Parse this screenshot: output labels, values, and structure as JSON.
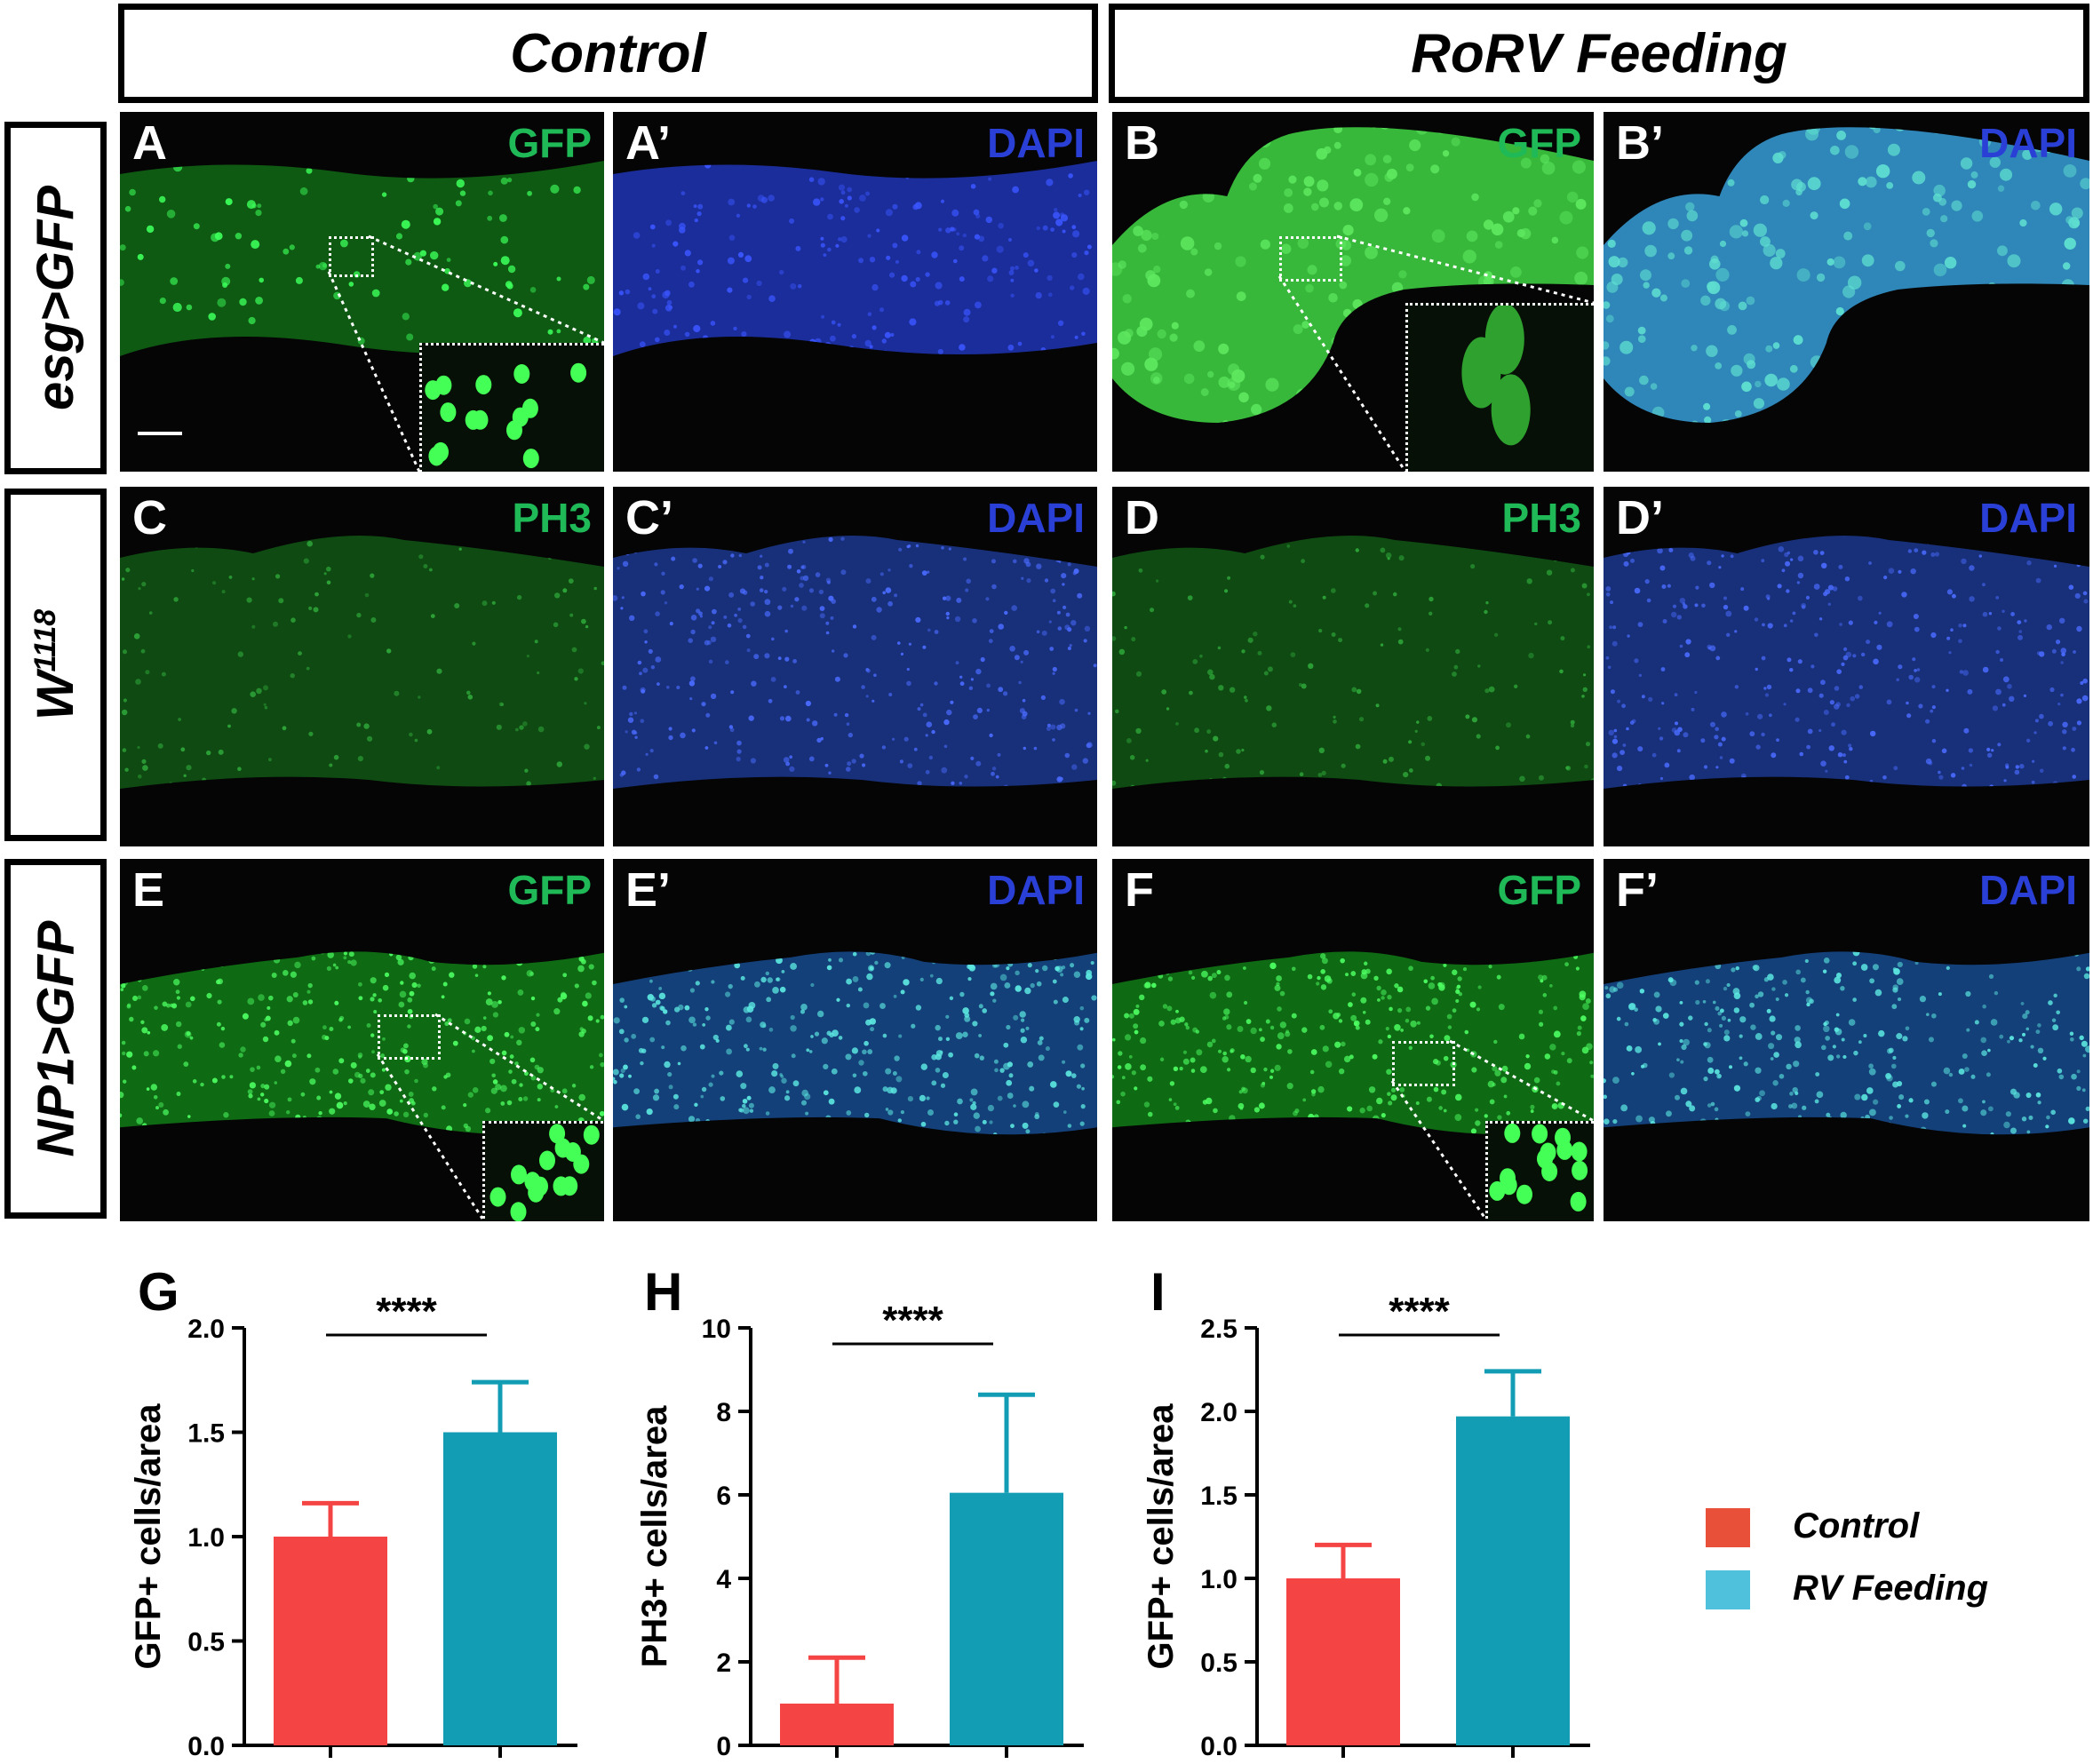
{
  "column_headers": [
    "Control",
    "RoRV Feeding"
  ],
  "row_headers": [
    {
      "text": "esg>GFP",
      "sup": ""
    },
    {
      "text": "W",
      "sup": "1118"
    },
    {
      "text": "NP1>GFP",
      "sup": ""
    }
  ],
  "panels": [
    {
      "letter": "A",
      "channel": "GFP",
      "channel_color": "#1fb957"
    },
    {
      "letter": "A’",
      "channel": "DAPI",
      "channel_color": "#2a3fd6"
    },
    {
      "letter": "B",
      "channel": "GFP",
      "channel_color": "#1fb957"
    },
    {
      "letter": "B’",
      "channel": "DAPI",
      "channel_color": "#2a3fd6"
    },
    {
      "letter": "C",
      "channel": "PH3",
      "channel_color": "#1fb957"
    },
    {
      "letter": "C’",
      "channel": "DAPI",
      "channel_color": "#2a3fd6"
    },
    {
      "letter": "D",
      "channel": "PH3",
      "channel_color": "#1fb957"
    },
    {
      "letter": "D’",
      "channel": "DAPI",
      "channel_color": "#2a3fd6"
    },
    {
      "letter": "E",
      "channel": "GFP",
      "channel_color": "#1fb957"
    },
    {
      "letter": "E’",
      "channel": "DAPI",
      "channel_color": "#2a3fd6"
    },
    {
      "letter": "F",
      "channel": "GFP",
      "channel_color": "#1fb957"
    },
    {
      "letter": "F’",
      "channel": "DAPI",
      "channel_color": "#2a3fd6"
    }
  ],
  "chart_data": [
    {
      "type": "bar",
      "letter": "G",
      "categories": [
        "Control",
        "RV Feeding"
      ],
      "values": [
        1.0,
        1.5
      ],
      "errors": [
        0.16,
        0.24
      ],
      "ylabel": "GFP+ cells/area",
      "ylim": [
        0,
        2.0
      ],
      "yticks": [
        "0.0",
        "0.5",
        "1.0",
        "1.5",
        "2.0"
      ],
      "significance": "****",
      "colors": [
        "#f44444",
        "#139db5"
      ]
    },
    {
      "type": "bar",
      "letter": "H",
      "categories": [
        "Control",
        "RV Feeding"
      ],
      "values": [
        1.0,
        6.05
      ],
      "errors": [
        1.1,
        2.35
      ],
      "ylabel": "PH3+ cells/area",
      "ylim": [
        0,
        10
      ],
      "yticks": [
        "0",
        "2",
        "4",
        "6",
        "8",
        "10"
      ],
      "significance": "****",
      "colors": [
        "#f44444",
        "#139db5"
      ]
    },
    {
      "type": "bar",
      "letter": "I",
      "categories": [
        "Control",
        "RV Feeding"
      ],
      "values": [
        1.0,
        1.97
      ],
      "errors": [
        0.2,
        0.27
      ],
      "ylabel": "GFP+ cells/area",
      "ylim": [
        0,
        2.5
      ],
      "yticks": [
        "0.0",
        "0.5",
        "1.0",
        "1.5",
        "2.0",
        "2.5"
      ],
      "significance": "****",
      "colors": [
        "#f44444",
        "#139db5"
      ]
    }
  ],
  "legend": [
    {
      "label": "Control",
      "color": "#e8503a"
    },
    {
      "label": "RV Feeding",
      "color": "#4fc1dc"
    }
  ]
}
